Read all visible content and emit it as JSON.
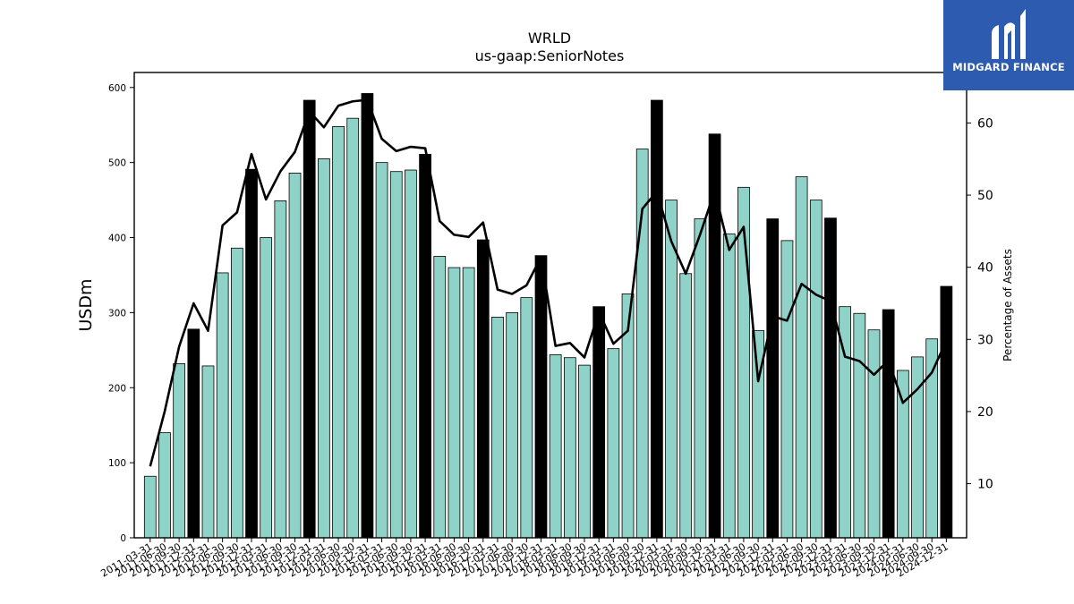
{
  "chart_data": {
    "type": "bar+line",
    "title": "WRLD",
    "subtitle": "us-gaap:SeniorNotes",
    "ylabel": "USDm",
    "y2label": "Percentage of Assets",
    "ylim": [
      0,
      620
    ],
    "y2lim": [
      2.5,
      67
    ],
    "yticks": [
      0,
      100,
      200,
      300,
      400,
      500,
      600
    ],
    "y2ticks": [
      10,
      20,
      30,
      40,
      50,
      60
    ],
    "grid": false,
    "categories": [
      "2011-03-31",
      "2011-06-30",
      "2011-09-30",
      "2011-12-31",
      "2012-03-31",
      "2012-06-30",
      "2012-09-30",
      "2012-12-31",
      "2013-03-31",
      "2013-06-30",
      "2013-09-30",
      "2013-12-31",
      "2014-03-31",
      "2014-06-30",
      "2014-09-30",
      "2014-12-31",
      "2015-03-31",
      "2015-06-30",
      "2015-09-30",
      "2015-12-31",
      "2016-03-31",
      "2016-06-30",
      "2016-09-30",
      "2016-12-31",
      "2017-03-31",
      "2017-06-30",
      "2017-09-30",
      "2017-12-31",
      "2018-03-31",
      "2018-06-30",
      "2018-09-30",
      "2018-12-31",
      "2019-03-31",
      "2019-06-30",
      "2019-09-30",
      "2019-12-31",
      "2020-03-31",
      "2020-06-30",
      "2020-09-30",
      "2020-12-31",
      "2021-03-31",
      "2021-06-30",
      "2021-09-30",
      "2021-12-31",
      "2022-03-31",
      "2022-06-30",
      "2022-09-30",
      "2022-12-31",
      "2023-03-31",
      "2023-06-30",
      "2023-09-30",
      "2023-12-31",
      "2024-03-31",
      "2024-06-30",
      "2024-09-30",
      "2024-12-31"
    ],
    "series": [
      {
        "kind": "bar",
        "values": [
          82,
          140,
          232,
          278,
          229,
          353,
          386,
          491,
          400,
          449,
          486,
          583,
          505,
          548,
          559,
          592,
          500,
          488,
          490,
          511,
          375,
          360,
          360,
          397,
          294,
          300,
          320,
          376,
          244,
          240,
          230,
          308,
          252,
          325,
          518,
          583,
          450,
          352,
          425,
          538,
          405,
          467,
          276,
          425,
          396,
          481,
          450,
          426,
          308,
          299,
          277,
          304,
          223,
          241,
          265,
          335
        ],
        "highlight": [
          false,
          false,
          false,
          true,
          false,
          false,
          false,
          true,
          false,
          false,
          false,
          true,
          false,
          false,
          false,
          true,
          false,
          false,
          false,
          true,
          false,
          false,
          false,
          true,
          false,
          false,
          false,
          true,
          false,
          false,
          false,
          true,
          false,
          false,
          false,
          true,
          false,
          false,
          false,
          true,
          false,
          false,
          false,
          true,
          false,
          false,
          false,
          true,
          false,
          false,
          false,
          true,
          false,
          false,
          false,
          true
        ]
      },
      {
        "kind": "line",
        "axis": "right",
        "values": [
          12.4,
          20.0,
          29.0,
          35.0,
          31.2,
          45.8,
          47.6,
          55.7,
          49.4,
          53.3,
          56.0,
          61.6,
          59.4,
          62.4,
          63.0,
          63.2,
          57.8,
          56.1,
          56.7,
          56.5,
          46.4,
          44.5,
          44.2,
          46.2,
          36.9,
          36.3,
          37.5,
          41.4,
          29.1,
          29.5,
          27.5,
          33.8,
          29.4,
          31.2,
          48.1,
          50.5,
          43.6,
          39.1,
          44.6,
          50.6,
          42.4,
          45.6,
          24.2,
          33.2,
          32.6,
          37.7,
          36.2,
          35.3,
          27.6,
          27.0,
          25.1,
          27.1,
          21.2,
          23.1,
          25.4,
          29.8
        ]
      }
    ],
    "colors": {
      "bar": "#8fd3c8",
      "bar_highlight": "#000000",
      "line": "#000000",
      "axis": "#000000"
    }
  },
  "logo": {
    "text": "MIDGARD FINANCE",
    "bg": "#2d5bb0"
  }
}
